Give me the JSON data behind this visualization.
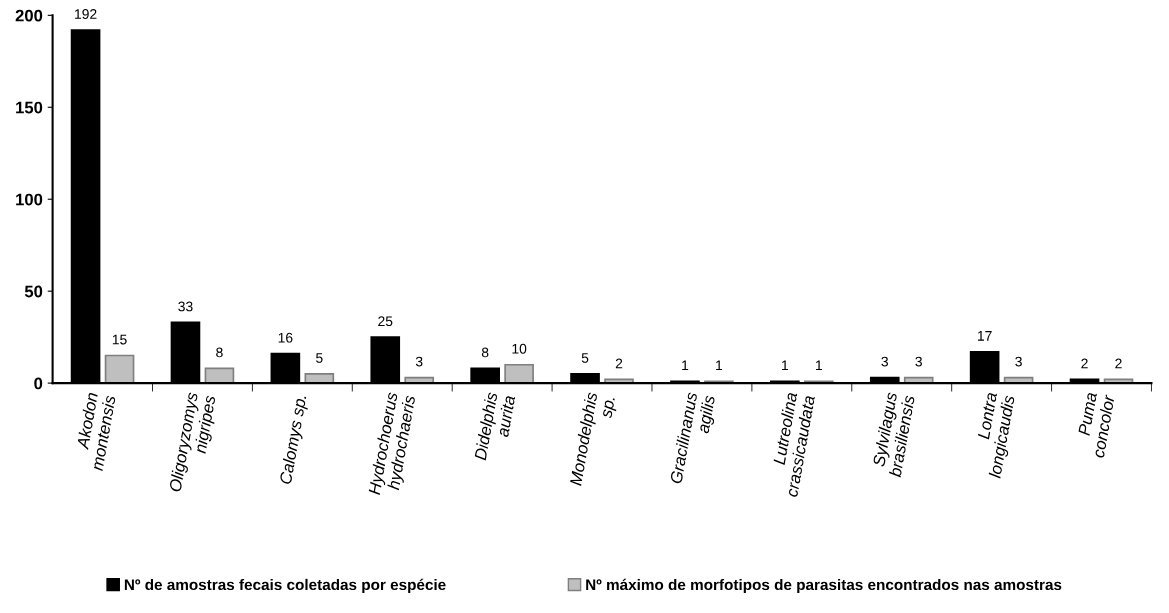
{
  "chart_data": {
    "type": "bar",
    "categories": [
      "Akodon\nmontensis",
      "Oligoryzomys\nnigripes",
      "Calomys sp.",
      "Hydrochoerus\nhydrochaeris",
      "Didelphis\naurita",
      "Monodelphis\nsp.",
      "Gracilinanus\nagilis",
      "Lutreolina\ncrassicaudata",
      "Sylvilagus\nbrasiliensis",
      "Lontra\nlongicaudis",
      "Puma\nconcolor"
    ],
    "series": [
      {
        "name": "Nº de amostras fecais coletadas por espécie",
        "color": "#000000",
        "values": [
          192,
          33,
          16,
          25,
          8,
          5,
          1,
          1,
          3,
          17,
          2
        ]
      },
      {
        "name": "Nº máximo de morfotipos de parasitas encontrados nas amostras",
        "color": "#bfbfbf",
        "values": [
          15,
          8,
          5,
          3,
          10,
          2,
          1,
          1,
          3,
          3,
          2
        ]
      }
    ],
    "ylim": [
      0,
      200
    ],
    "yticks": [
      0,
      50,
      100,
      150,
      200
    ],
    "data_labels": true,
    "legend": "bottom",
    "grid": false
  }
}
